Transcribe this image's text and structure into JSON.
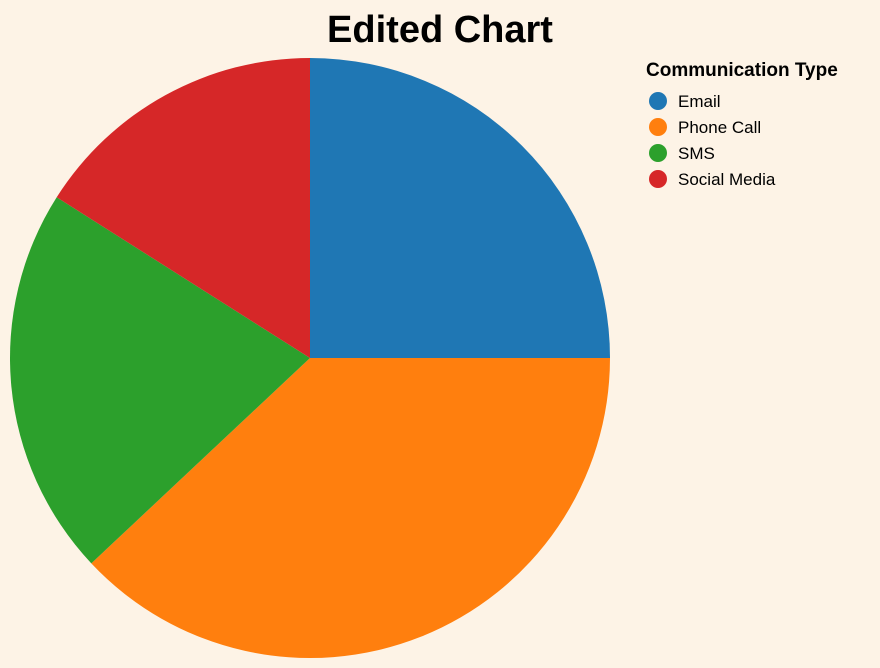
{
  "chart_data": {
    "type": "pie",
    "title": "Edited Chart",
    "legend_title": "Communication Type",
    "legend_position": "top-right",
    "categories": [
      "Email",
      "Phone Call",
      "SMS",
      "Social Media"
    ],
    "values": [
      25,
      38,
      21,
      16
    ],
    "colors": [
      "#1f77b4",
      "#ff7f0e",
      "#2ca02c",
      "#d62728"
    ]
  }
}
